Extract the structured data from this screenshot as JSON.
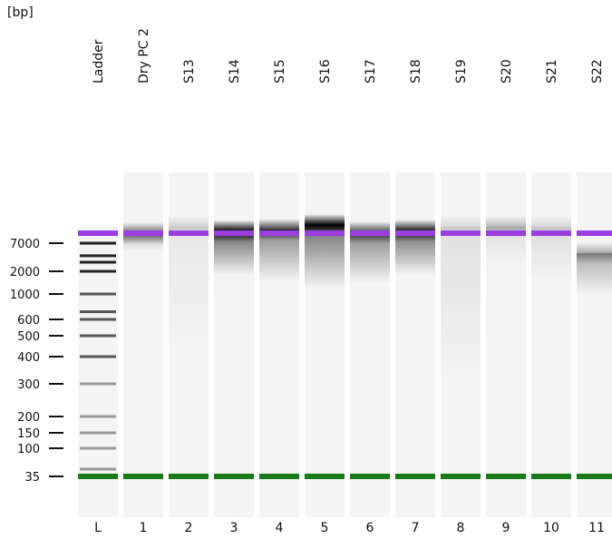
{
  "chart_data": {
    "type": "gel",
    "unit_label": "[bp]",
    "size_ticks": [
      {
        "label": "7000",
        "bp": 7000
      },
      {
        "label": "2000",
        "bp": 2000
      },
      {
        "label": "1000",
        "bp": 1000
      },
      {
        "label": "600",
        "bp": 600
      },
      {
        "label": "500",
        "bp": 500
      },
      {
        "label": "400",
        "bp": 400
      },
      {
        "label": "300",
        "bp": 300
      },
      {
        "label": "200",
        "bp": 200
      },
      {
        "label": "150",
        "bp": 150
      },
      {
        "label": "100",
        "bp": 100
      },
      {
        "label": "35",
        "bp": 35
      }
    ],
    "upper_marker_color": "#9b3ee0",
    "lower_marker_color": "#1a7a1a",
    "ladder_bands_bp": [
      7000,
      4000,
      3000,
      2000,
      1000,
      700,
      600,
      500,
      400,
      300,
      200,
      150,
      100,
      50
    ],
    "lanes": [
      {
        "title": "Ladder",
        "number": "L",
        "kind": "ladder"
      },
      {
        "title": "Dry PC 2",
        "number": "1",
        "band_bp": 9000,
        "intensity": 0.55,
        "smear_to_bp": 5000,
        "smear_strength": 0.25
      },
      {
        "title": "S13",
        "number": "2",
        "band_bp": 10500,
        "intensity": 0.15,
        "smear_to_bp": 400,
        "smear_strength": 0.05
      },
      {
        "title": "S14",
        "number": "3",
        "band_bp": 9500,
        "intensity": 0.95,
        "smear_to_bp": 1800,
        "smear_strength": 0.6
      },
      {
        "title": "S15",
        "number": "4",
        "band_bp": 9800,
        "intensity": 0.75,
        "smear_to_bp": 1500,
        "smear_strength": 0.45
      },
      {
        "title": "S16",
        "number": "5",
        "band_bp": 11000,
        "intensity": 1.0,
        "smear_to_bp": 1200,
        "smear_strength": 0.55
      },
      {
        "title": "S17",
        "number": "6",
        "band_bp": 9200,
        "intensity": 0.7,
        "smear_to_bp": 1400,
        "smear_strength": 0.45
      },
      {
        "title": "S18",
        "number": "7",
        "band_bp": 9600,
        "intensity": 0.85,
        "smear_to_bp": 1800,
        "smear_strength": 0.55
      },
      {
        "title": "S19",
        "number": "8",
        "band_bp": 10500,
        "intensity": 0.12,
        "smear_to_bp": 300,
        "smear_strength": 0.08
      },
      {
        "title": "S20",
        "number": "9",
        "band_bp": 10500,
        "intensity": 0.25,
        "smear_to_bp": 3000,
        "smear_strength": 0.1
      },
      {
        "title": "S21",
        "number": "10",
        "band_bp": 10500,
        "intensity": 0.12,
        "smear_to_bp": 1500,
        "smear_strength": 0.1
      },
      {
        "title": "S22",
        "number": "11",
        "band_bp": 4500,
        "intensity": 0.3,
        "smear_to_bp": 1000,
        "smear_strength": 0.3
      }
    ]
  }
}
